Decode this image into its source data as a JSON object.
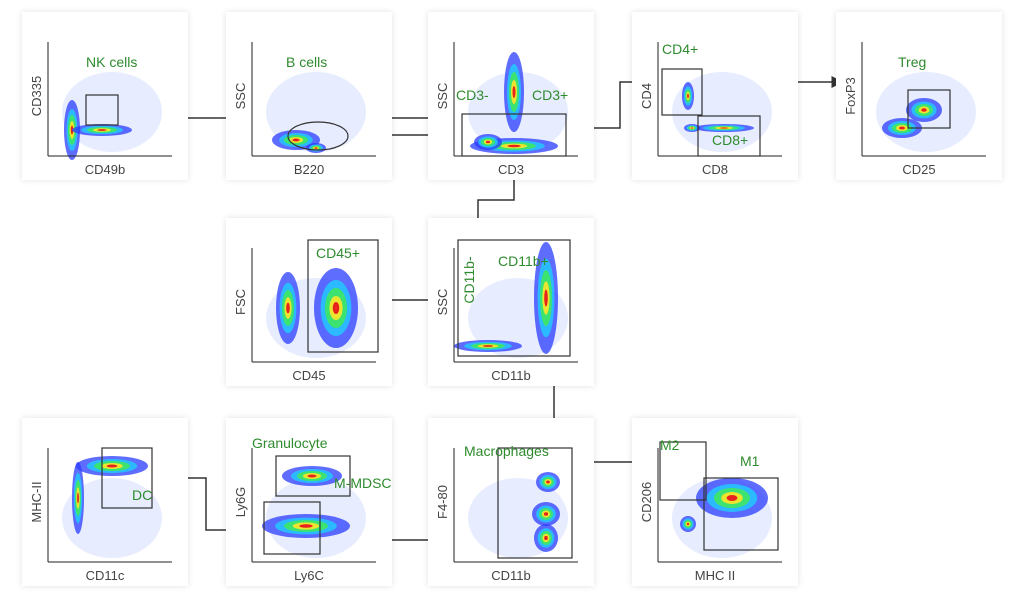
{
  "panels": [
    {
      "y_label": "CD335",
      "x_label": "CD49b",
      "gates": [
        "NK cells"
      ]
    },
    {
      "y_label": "SSC",
      "x_label": "B220",
      "gates": [
        "B cells"
      ]
    },
    {
      "y_label": "SSC",
      "x_label": "CD3",
      "gates": [
        "CD3-",
        "CD3+"
      ]
    },
    {
      "y_label": "CD4",
      "x_label": "CD8",
      "gates": [
        "CD4+",
        "CD8+"
      ]
    },
    {
      "y_label": "FoxP3",
      "x_label": "CD25",
      "gates": [
        "Treg"
      ]
    },
    {
      "y_label": "FSC",
      "x_label": "CD45",
      "gates": [
        "CD45+"
      ]
    },
    {
      "y_label": "SSC",
      "x_label": "CD11b",
      "gates": [
        "CD11b-",
        "CD11b+"
      ]
    },
    {
      "y_label": "MHC-II",
      "x_label": "CD11c",
      "gates": [
        "DC"
      ]
    },
    {
      "y_label": "Ly6G",
      "x_label": "Ly6C",
      "gates": [
        "Granulocyte",
        "M-MDSC"
      ]
    },
    {
      "y_label": "F4-80",
      "x_label": "CD11b",
      "gates": [
        "Macrophages"
      ]
    },
    {
      "y_label": "CD206",
      "x_label": "MHC II",
      "gates": [
        "M2",
        "M1"
      ]
    }
  ]
}
